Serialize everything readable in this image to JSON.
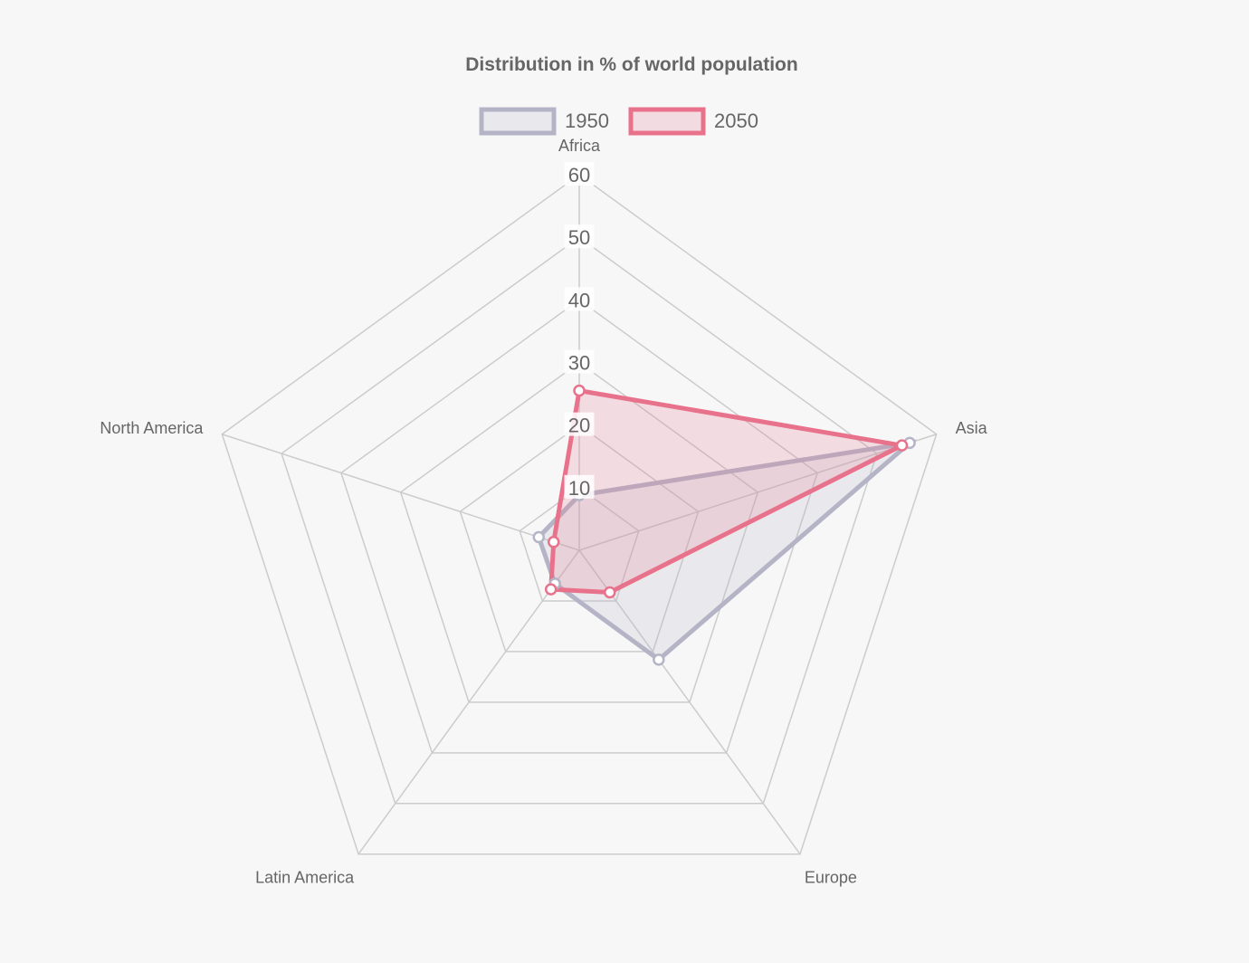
{
  "chart_data": {
    "type": "radar",
    "title": "Distribution in % of world population",
    "labels": [
      "Africa",
      "Asia",
      "Europe",
      "Latin America",
      "North America"
    ],
    "series": [
      {
        "name": "1950",
        "values": [
          8.8,
          55.5,
          21.6,
          6.6,
          6.8
        ],
        "border_color": "#b4b4c6",
        "fill_color": "rgba(180,180,198,0.2)"
      },
      {
        "name": "2050",
        "values": [
          25.5,
          54.2,
          8.3,
          7.7,
          4.3
        ],
        "border_color": "#e8728b",
        "fill_color": "rgba(232,114,139,0.2)"
      }
    ],
    "r_axis": {
      "min": 0,
      "max": 60,
      "step": 10,
      "ticks": [
        "10",
        "20",
        "30",
        "40",
        "50",
        "60"
      ]
    },
    "legend_position": "top",
    "grid": true
  }
}
